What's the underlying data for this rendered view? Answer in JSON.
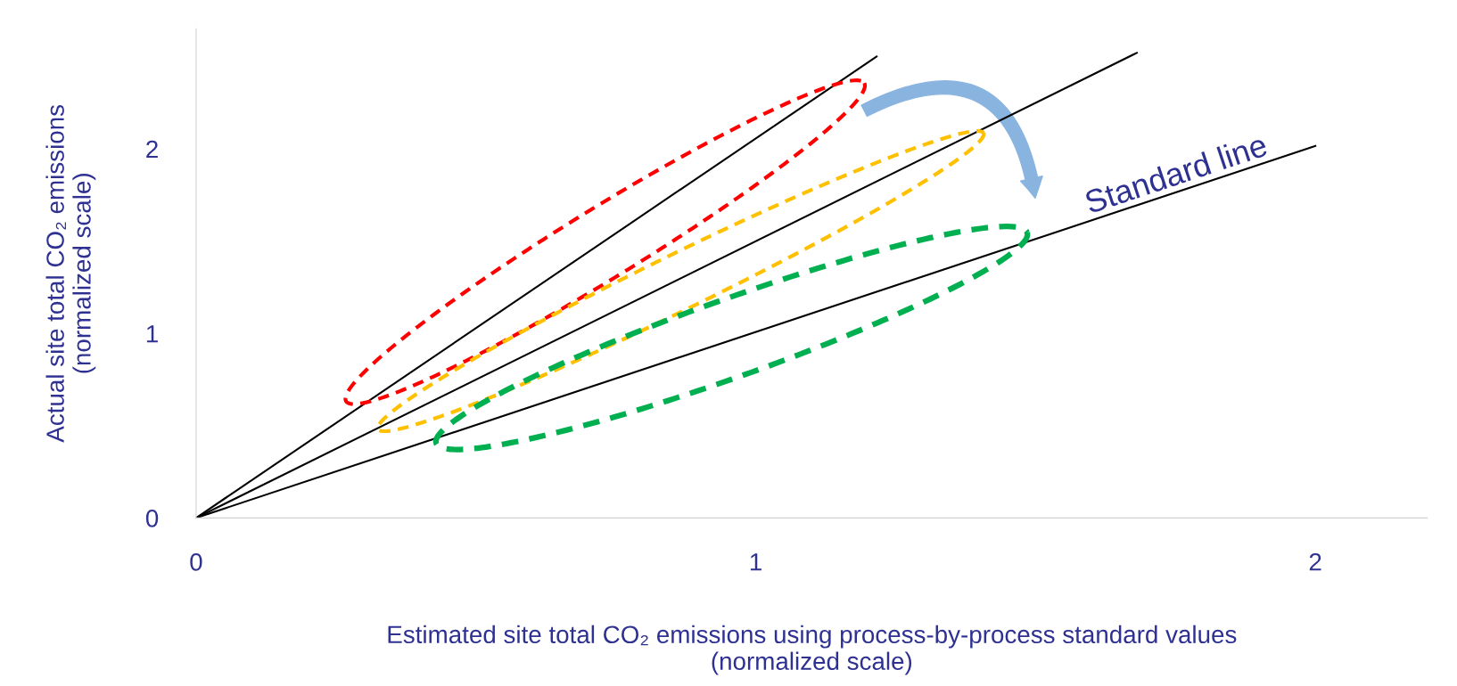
{
  "chart_data": {
    "type": "line",
    "xlabel": "Estimated site total CO₂ emissions using process-by-process standard values\n(normalized scale)",
    "ylabel": "Actual site total CO₂ emissions\n(normalized scale)",
    "xlim": [
      0,
      2.2
    ],
    "ylim": [
      0,
      2.65
    ],
    "xticks": [
      0,
      1,
      2
    ],
    "yticks": [
      0,
      1,
      2
    ],
    "grid": false,
    "marker": "none",
    "line_style": "solid",
    "series": [
      {
        "color": "#000000",
        "x": [
          0,
          1.216
        ],
        "values": [
          0,
          2.5
        ]
      },
      {
        "color": "#000000",
        "x": [
          0,
          1.681
        ],
        "values": [
          0,
          2.52
        ]
      },
      {
        "color": "#000000",
        "x": [
          0,
          2.0
        ],
        "values": [
          0,
          2.015
        ]
      }
    ],
    "annotations": [
      "Standard line"
    ]
  }
}
